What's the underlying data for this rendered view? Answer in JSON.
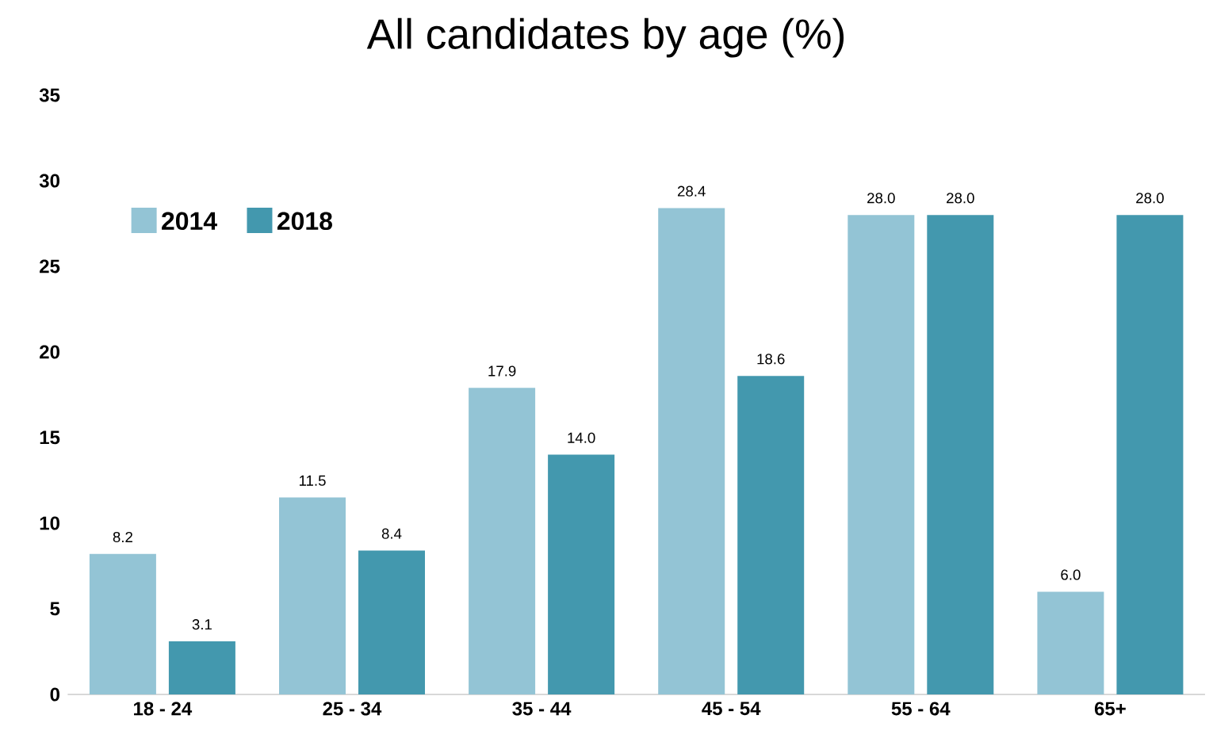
{
  "chart_data": {
    "type": "bar",
    "title": "All candidates by age (%)",
    "categories": [
      "18 - 24",
      "25 - 34",
      "35 - 44",
      "45 - 54",
      "55 - 64",
      "65+"
    ],
    "series": [
      {
        "name": "2014",
        "color": "#93c4d5",
        "values": [
          8.2,
          11.5,
          17.9,
          28.4,
          28.0,
          6.0
        ],
        "value_labels": [
          "8.2",
          "11.5",
          "17.9",
          "28.4",
          "28.0",
          "6.0"
        ]
      },
      {
        "name": "2018",
        "color": "#4398ae",
        "values": [
          3.1,
          8.4,
          14.0,
          18.6,
          28.0,
          28.0
        ],
        "value_labels": [
          "3.1",
          "8.4",
          "14.0",
          "18.6",
          "28.0",
          "28.0"
        ]
      }
    ],
    "ylim": [
      0,
      35
    ],
    "yticks": [
      0,
      5,
      10,
      15,
      20,
      25,
      30,
      35
    ],
    "grid": false,
    "legend": "top left"
  }
}
